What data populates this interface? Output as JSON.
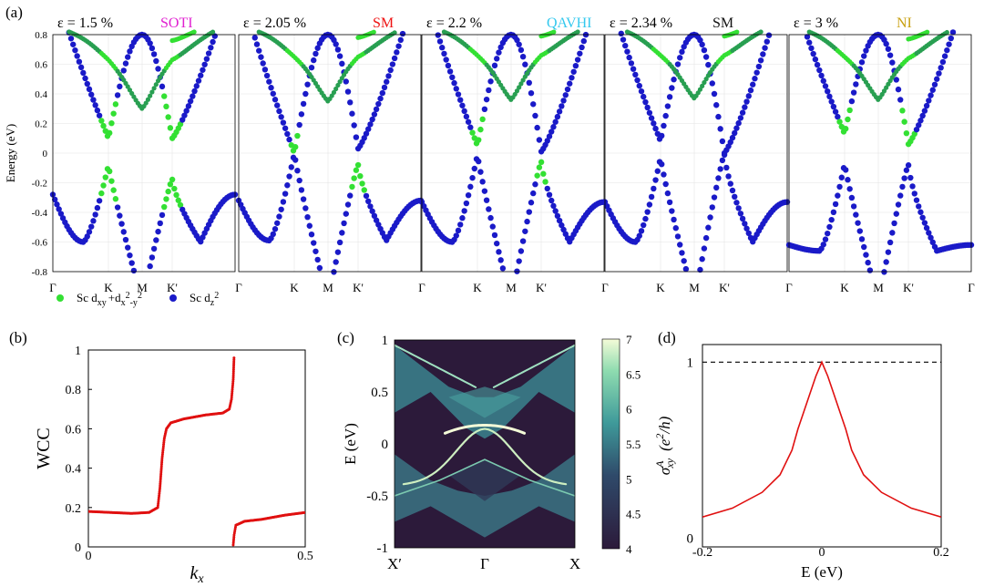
{
  "panel_labels": {
    "a": "(a)",
    "b": "(b)",
    "c": "(c)",
    "d": "(d)"
  },
  "colors": {
    "green": "#33e033",
    "blue": "#1a1ac8",
    "red": "#e01010",
    "blend": "#1f6a6a"
  },
  "chart_data": [
    {
      "type": "scatter",
      "panel": "a",
      "ylabel": "Energy (eV)",
      "ylim": [
        -0.8,
        0.8
      ],
      "yticks": [
        "0.8",
        "0.6",
        "0.4",
        "0.2",
        "0",
        "-0.2",
        "-0.4",
        "-0.6",
        "-0.8"
      ],
      "kpath": [
        "Γ",
        "K",
        "M",
        "K'",
        "Γ"
      ],
      "legend": [
        {
          "label": "Sc d",
          "sub1": "xy",
          "plus": "+d",
          "sub2": "x",
          "sup2": "2",
          "mid": "-y",
          "sup3": "2",
          "color": "#33e033"
        },
        {
          "label": "Sc d",
          "sub1": "z",
          "sup1": "2",
          "color": "#1a1ac8"
        }
      ],
      "subplots": [
        {
          "strain": "ε = 1.5 %",
          "phase": "SOTI",
          "phase_color": "#e020d0",
          "K_gap": [
            -0.08,
            0.1
          ],
          "Kp_gap": [
            -0.17,
            0.1
          ],
          "gamma_vb": -0.28,
          "vb_min_near_gamma": -0.6,
          "upper_min_K": 0.63,
          "upper_min_M": 0.3,
          "upper_min_Kp": 0.63,
          "K_color": "green"
        },
        {
          "strain": "ε = 2.05 %",
          "phase": "SM",
          "phase_color": "#ee1111",
          "K_gap": [
            0.0,
            0.0
          ],
          "Kp_gap": [
            -0.07,
            0.03
          ],
          "gamma_vb": -0.32,
          "vb_min_near_gamma": -0.59,
          "upper_min_K": 0.65,
          "upper_min_M": 0.35,
          "upper_min_Kp": 0.65,
          "K_color": "blue"
        },
        {
          "strain": "ε = 2.2 %",
          "phase": "QAVHI",
          "phase_color": "#33c8ee",
          "K_gap": [
            -0.01,
            0.05
          ],
          "Kp_gap": [
            -0.05,
            0.01
          ],
          "gamma_vb": -0.33,
          "vb_min_near_gamma": -0.6,
          "upper_min_K": 0.66,
          "upper_min_M": 0.36,
          "upper_min_Kp": 0.66,
          "K_color": "mixed"
        },
        {
          "strain": "ε = 2.34 %",
          "phase": "SM",
          "phase_color": "#111111",
          "K_gap": [
            -0.03,
            0.08
          ],
          "Kp_gap": [
            0.0,
            0.0
          ],
          "gamma_vb": -0.33,
          "vb_min_near_gamma": -0.6,
          "upper_min_K": 0.66,
          "upper_min_M": 0.37,
          "upper_min_Kp": 0.66,
          "K_color": "blue"
        },
        {
          "strain": "ε = 3 %",
          "phase": "NI",
          "phase_color": "#c8a010",
          "K_gap": [
            -0.07,
            0.13
          ],
          "Kp_gap": [
            -0.07,
            0.06
          ],
          "gamma_vb": -0.62,
          "vb_min_near_gamma": -0.66,
          "upper_min_K": 0.65,
          "upper_min_M": 0.36,
          "upper_min_Kp": 0.64,
          "K_color": "blue"
        }
      ]
    },
    {
      "type": "scatter",
      "panel": "b",
      "xlabel": "k_x",
      "ylabel": "WCC",
      "xlim": [
        0,
        0.5
      ],
      "ylim": [
        0,
        1
      ],
      "xticks": [
        "0",
        "0.5"
      ],
      "yticks": [
        "1",
        "0.8",
        "0.6",
        "0.4",
        "0.2",
        "0"
      ],
      "grid": false,
      "series": [
        {
          "points": [
            [
              0,
              0.18
            ],
            [
              0.05,
              0.175
            ],
            [
              0.1,
              0.17
            ],
            [
              0.14,
              0.175
            ],
            [
              0.16,
              0.2
            ],
            [
              0.165,
              0.3
            ],
            [
              0.17,
              0.45
            ],
            [
              0.175,
              0.55
            ],
            [
              0.18,
              0.6
            ],
            [
              0.19,
              0.63
            ],
            [
              0.22,
              0.65
            ],
            [
              0.27,
              0.67
            ],
            [
              0.31,
              0.68
            ],
            [
              0.325,
              0.7
            ],
            [
              0.33,
              0.75
            ],
            [
              0.334,
              0.85
            ],
            [
              0.336,
              0.97
            ]
          ]
        },
        {
          "points": [
            [
              0.334,
              0.01
            ],
            [
              0.336,
              0.06
            ],
            [
              0.34,
              0.11
            ],
            [
              0.36,
              0.13
            ],
            [
              0.4,
              0.14
            ],
            [
              0.45,
              0.16
            ],
            [
              0.5,
              0.175
            ]
          ]
        }
      ]
    },
    {
      "type": "heatmap",
      "panel": "c",
      "ylabel": "E (eV)",
      "ylim": [
        -1,
        1
      ],
      "xticks": [
        "X′",
        "Γ",
        "X"
      ],
      "yticks": [
        "1",
        "0.5",
        "0",
        "-0.5",
        "-1"
      ],
      "colorbar": {
        "min": 4,
        "max": 7,
        "ticks": [
          "7",
          "6.5",
          "6",
          "5.5",
          "5",
          "4.5",
          "4"
        ]
      }
    },
    {
      "type": "line",
      "panel": "d",
      "xlabel": "E (eV)",
      "ylabel": "σ",
      "ylabel_sup": "A",
      "ylabel_sub": "xy",
      "ylabel_unit": "(e",
      "ylabel_unit_sup": "2",
      "ylabel_unit_end": "/h)",
      "xlim": [
        -0.2,
        0.2
      ],
      "ylim": [
        -0.05,
        1.1
      ],
      "xticks": [
        "-0.2",
        "0",
        "0.2"
      ],
      "yticks": [
        "1",
        "0"
      ],
      "reference_line": 1,
      "series": [
        {
          "x": [
            -0.2,
            -0.15,
            -0.1,
            -0.07,
            -0.05,
            -0.04,
            -0.03,
            -0.02,
            -0.01,
            0,
            0.01,
            0.02,
            0.03,
            0.04,
            0.05,
            0.07,
            0.1,
            0.15,
            0.2
          ],
          "y": [
            0.12,
            0.17,
            0.26,
            0.36,
            0.5,
            0.62,
            0.72,
            0.82,
            0.92,
            1.0,
            0.92,
            0.82,
            0.72,
            0.62,
            0.5,
            0.36,
            0.26,
            0.17,
            0.12
          ]
        }
      ]
    }
  ]
}
